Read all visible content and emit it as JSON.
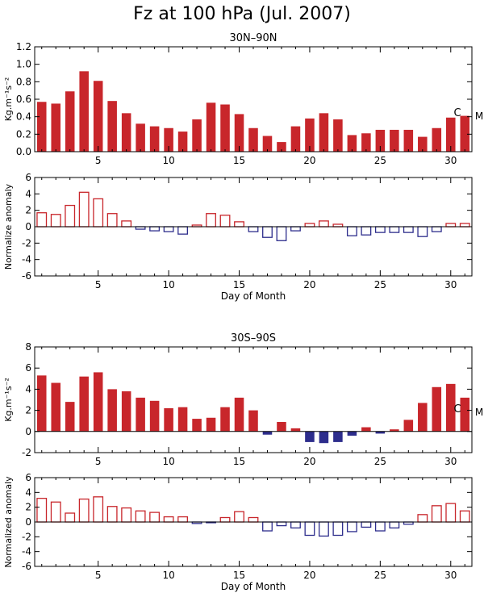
{
  "title": "Fz at 100 hPa (Jul. 2007)",
  "x_ticks": [
    "5",
    "10",
    "15",
    "20",
    "25",
    "30"
  ],
  "colors": {
    "positive": "#c8262b",
    "negative": "#2d2d8c",
    "axis": "#000000"
  },
  "chart_data": [
    {
      "type": "bar",
      "title": "30N–90N",
      "ylabel": "Kg.m⁻¹s⁻²",
      "ylim": [
        0.0,
        1.2
      ],
      "y_ticks": [
        "0.0",
        "0.2",
        "0.4",
        "0.6",
        "0.8",
        "1.0",
        "1.2"
      ],
      "xlim": [
        1,
        31
      ],
      "x_tick_values": [
        5,
        10,
        15,
        20,
        25,
        30
      ],
      "marker_text": "CM",
      "style": "filled",
      "x": [
        1,
        2,
        3,
        4,
        5,
        6,
        7,
        8,
        9,
        10,
        11,
        12,
        13,
        14,
        15,
        16,
        17,
        18,
        19,
        20,
        21,
        22,
        23,
        24,
        25,
        26,
        27,
        28,
        29,
        30,
        31
      ],
      "values": [
        0.57,
        0.55,
        0.69,
        0.92,
        0.81,
        0.58,
        0.44,
        0.32,
        0.29,
        0.27,
        0.23,
        0.37,
        0.56,
        0.54,
        0.43,
        0.27,
        0.18,
        0.11,
        0.29,
        0.38,
        0.44,
        0.37,
        0.19,
        0.21,
        0.25,
        0.25,
        0.25,
        0.17,
        0.27,
        0.39,
        0.41
      ]
    },
    {
      "type": "bar",
      "title": "",
      "ylabel": "Normalize anomaly",
      "ylim": [
        -6,
        6
      ],
      "y_ticks": [
        "-6",
        "-4",
        "-2",
        "0",
        "2",
        "4",
        "6"
      ],
      "xlim": [
        1,
        31
      ],
      "x_tick_values": [
        5,
        10,
        15,
        20,
        25,
        30
      ],
      "xlabel": "Day of Month",
      "style": "outline",
      "x": [
        1,
        2,
        3,
        4,
        5,
        6,
        7,
        8,
        9,
        10,
        11,
        12,
        13,
        14,
        15,
        16,
        17,
        18,
        19,
        20,
        21,
        22,
        23,
        24,
        25,
        26,
        27,
        28,
        29,
        30,
        31
      ],
      "values": [
        1.7,
        1.5,
        2.6,
        4.2,
        3.4,
        1.6,
        0.7,
        -0.3,
        -0.5,
        -0.6,
        -0.9,
        0.2,
        1.6,
        1.4,
        0.6,
        -0.6,
        -1.3,
        -1.7,
        -0.5,
        0.4,
        0.7,
        0.3,
        -1.1,
        -1.0,
        -0.7,
        -0.7,
        -0.7,
        -1.2,
        -0.6,
        0.4,
        0.4
      ]
    },
    {
      "type": "bar",
      "title": "30S–90S",
      "ylabel": "Kg.m⁻¹s⁻²",
      "ylim": [
        -2,
        8
      ],
      "y_ticks": [
        "-2",
        "0",
        "2",
        "4",
        "6",
        "8"
      ],
      "xlim": [
        1,
        31
      ],
      "x_tick_values": [
        5,
        10,
        15,
        20,
        25,
        30
      ],
      "marker_text": "CM",
      "style": "filled",
      "x": [
        1,
        2,
        3,
        4,
        5,
        6,
        7,
        8,
        9,
        10,
        11,
        12,
        13,
        14,
        15,
        16,
        17,
        18,
        19,
        20,
        21,
        22,
        23,
        24,
        25,
        26,
        27,
        28,
        29,
        30,
        31
      ],
      "values": [
        5.3,
        4.6,
        2.8,
        5.2,
        5.6,
        4.0,
        3.8,
        3.2,
        2.9,
        2.2,
        2.3,
        1.2,
        1.3,
        2.3,
        3.2,
        2.0,
        -0.3,
        0.9,
        0.3,
        -1.0,
        -1.1,
        -1.0,
        -0.4,
        0.4,
        -0.2,
        0.2,
        1.1,
        2.7,
        4.2,
        4.5,
        3.2
      ]
    },
    {
      "type": "bar",
      "title": "",
      "ylabel": "Normalized anomaly",
      "ylim": [
        -6,
        6
      ],
      "y_ticks": [
        "-6",
        "-4",
        "-2",
        "0",
        "2",
        "4",
        "6"
      ],
      "xlim": [
        1,
        31
      ],
      "x_tick_values": [
        5,
        10,
        15,
        20,
        25,
        30
      ],
      "xlabel": "Day of Month",
      "style": "outline",
      "x": [
        1,
        2,
        3,
        4,
        5,
        6,
        7,
        8,
        9,
        10,
        11,
        12,
        13,
        14,
        15,
        16,
        17,
        18,
        19,
        20,
        21,
        22,
        23,
        24,
        25,
        26,
        27,
        28,
        29,
        30,
        31
      ],
      "values": [
        3.2,
        2.7,
        1.2,
        3.1,
        3.4,
        2.1,
        1.9,
        1.5,
        1.3,
        0.7,
        0.7,
        -0.2,
        -0.1,
        0.6,
        1.4,
        0.6,
        -1.2,
        -0.5,
        -0.8,
        -1.8,
        -1.9,
        -1.8,
        -1.3,
        -0.7,
        -1.2,
        -0.8,
        -0.3,
        1.0,
        2.2,
        2.5,
        1.5
      ]
    }
  ]
}
